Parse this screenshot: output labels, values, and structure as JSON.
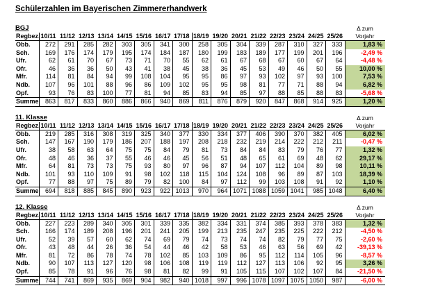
{
  "title": "Schülerzahlen im Bayerischen Zimmererhandwerk",
  "labels": {
    "region_header": "Regbez.",
    "delta_header_line1": "Δ zum",
    "delta_header_line2": "Vorjahr",
    "sum_label": "Summe"
  },
  "colors": {
    "positive_bg": "#c4d79b",
    "negative_text": "#ff0000"
  },
  "years": [
    "10/11",
    "11/12",
    "12/13",
    "13/14",
    "14/15",
    "15/16",
    "16/17",
    "17/18",
    "18/19",
    "19/20",
    "20/21",
    "21/22",
    "22/23",
    "23/24",
    "24/25",
    "25/26"
  ],
  "tables": [
    {
      "name": "BGJ",
      "rows": [
        {
          "label": "Obb.",
          "values": [
            272,
            291,
            285,
            282,
            303,
            305,
            341,
            300,
            258,
            305,
            304,
            339,
            287,
            310,
            327,
            333
          ],
          "delta": {
            "text": "1,83 %",
            "positive": true
          }
        },
        {
          "label": "Sch.",
          "values": [
            169,
            176,
            174,
            179,
            195,
            174,
            184,
            187,
            180,
            199,
            183,
            189,
            177,
            199,
            201,
            196
          ],
          "delta": {
            "text": "-2,49 %",
            "positive": false
          }
        },
        {
          "label": "Ufr.",
          "values": [
            62,
            61,
            70,
            67,
            73,
            71,
            70,
            55,
            62,
            61,
            67,
            68,
            67,
            60,
            67,
            64
          ],
          "delta": {
            "text": "-4,48 %",
            "positive": false
          }
        },
        {
          "label": "Ofr.",
          "values": [
            46,
            36,
            36,
            50,
            43,
            41,
            38,
            45,
            38,
            36,
            45,
            53,
            49,
            46,
            50,
            55
          ],
          "delta": {
            "text": "10,00 %",
            "positive": true
          }
        },
        {
          "label": "Mfr.",
          "values": [
            114,
            81,
            84,
            94,
            99,
            108,
            104,
            95,
            95,
            86,
            97,
            93,
            102,
            97,
            93,
            100
          ],
          "delta": {
            "text": "7,53 %",
            "positive": true
          }
        },
        {
          "label": "Ndb.",
          "values": [
            107,
            96,
            101,
            88,
            96,
            86,
            109,
            102,
            95,
            95,
            98,
            81,
            77,
            71,
            88,
            94
          ],
          "delta": {
            "text": "6,82 %",
            "positive": true
          }
        },
        {
          "label": "Opf.",
          "values": [
            93,
            76,
            83,
            100,
            77,
            81,
            94,
            85,
            83,
            94,
            85,
            97,
            88,
            85,
            88,
            83
          ],
          "delta": {
            "text": "-5,68 %",
            "positive": false
          }
        }
      ],
      "summe": {
        "label": "Summe",
        "values": [
          863,
          817,
          833,
          860,
          886,
          866,
          940,
          869,
          811,
          876,
          879,
          920,
          847,
          868,
          914,
          925
        ],
        "delta": {
          "text": "1,20 %",
          "positive": true
        }
      }
    },
    {
      "name": "11. Klasse",
      "rows": [
        {
          "label": "Obb.",
          "values": [
            219,
            285,
            316,
            308,
            319,
            325,
            340,
            377,
            330,
            334,
            377,
            406,
            390,
            370,
            382,
            405
          ],
          "delta": {
            "text": "6,02 %",
            "positive": true
          }
        },
        {
          "label": "Sch.",
          "values": [
            147,
            167,
            190,
            179,
            186,
            207,
            188,
            197,
            208,
            218,
            232,
            219,
            214,
            222,
            212,
            211
          ],
          "delta": {
            "text": "-0,47 %",
            "positive": false
          }
        },
        {
          "label": "Ufr.",
          "values": [
            38,
            58,
            63,
            64,
            75,
            75,
            84,
            79,
            81,
            73,
            84,
            84,
            83,
            79,
            76,
            77
          ],
          "delta": {
            "text": "1,32 %",
            "positive": true
          }
        },
        {
          "label": "Ofr.",
          "values": [
            48,
            46,
            36,
            37,
            55,
            46,
            46,
            45,
            56,
            51,
            48,
            65,
            61,
            69,
            48,
            62
          ],
          "delta": {
            "text": "29,17 %",
            "positive": true
          }
        },
        {
          "label": "Mfr.",
          "values": [
            64,
            81,
            73,
            73,
            75,
            93,
            80,
            97,
            96,
            87,
            94,
            107,
            112,
            104,
            89,
            98
          ],
          "delta": {
            "text": "10,11 %",
            "positive": true
          }
        },
        {
          "label": "Ndb.",
          "values": [
            101,
            93,
            110,
            109,
            91,
            98,
            102,
            118,
            115,
            104,
            124,
            108,
            96,
            89,
            87,
            103
          ],
          "delta": {
            "text": "18,39 %",
            "positive": true
          }
        },
        {
          "label": "Opf.",
          "values": [
            77,
            88,
            97,
            75,
            89,
            79,
            82,
            100,
            84,
            97,
            112,
            99,
            103,
            108,
            91,
            92
          ],
          "delta": {
            "text": "1,10 %",
            "positive": true
          }
        }
      ],
      "summe": {
        "label": "Summe",
        "values": [
          694,
          818,
          885,
          845,
          890,
          923,
          922,
          1013,
          970,
          964,
          1071,
          1088,
          1059,
          1041,
          985,
          1048
        ],
        "delta": {
          "text": "6,40 %",
          "positive": true
        }
      }
    },
    {
      "name": "12. Klasse",
      "rows": [
        {
          "label": "Obb.",
          "values": [
            227,
            223,
            289,
            340,
            305,
            301,
            339,
            335,
            382,
            334,
            331,
            374,
            385,
            393,
            378,
            383
          ],
          "delta": {
            "text": "1,32 %",
            "positive": true
          }
        },
        {
          "label": "Sch.",
          "values": [
            166,
            174,
            189,
            208,
            196,
            201,
            241,
            205,
            199,
            213,
            235,
            247,
            235,
            225,
            222,
            212
          ],
          "delta": {
            "text": "-4,50 %",
            "positive": false
          }
        },
        {
          "label": "Ufr.",
          "values": [
            52,
            39,
            57,
            60,
            62,
            74,
            69,
            79,
            74,
            73,
            74,
            74,
            82,
            79,
            77,
            75
          ],
          "delta": {
            "text": "-2,60 %",
            "positive": false
          }
        },
        {
          "label": "Ofr.",
          "values": [
            43,
            48,
            44,
            26,
            36,
            54,
            44,
            46,
            42,
            58,
            53,
            46,
            63,
            56,
            69,
            42
          ],
          "delta": {
            "text": "-39,13 %",
            "positive": false
          }
        },
        {
          "label": "Mfr.",
          "values": [
            81,
            72,
            86,
            78,
            74,
            78,
            102,
            85,
            103,
            109,
            86,
            95,
            112,
            114,
            105,
            96
          ],
          "delta": {
            "text": "-8,57 %",
            "positive": false
          }
        },
        {
          "label": "Ndb.",
          "values": [
            90,
            107,
            113,
            127,
            120,
            98,
            106,
            108,
            119,
            119,
            112,
            127,
            113,
            106,
            92,
            95
          ],
          "delta": {
            "text": "3,26 %",
            "positive": true
          }
        },
        {
          "label": "Opf.",
          "values": [
            85,
            78,
            91,
            96,
            76,
            98,
            81,
            82,
            99,
            91,
            105,
            115,
            107,
            102,
            107,
            84
          ],
          "delta": {
            "text": "-21,50 %",
            "positive": false
          }
        }
      ],
      "summe": {
        "label": "Summe",
        "values": [
          744,
          741,
          869,
          935,
          869,
          904,
          982,
          940,
          1018,
          997,
          996,
          1078,
          1097,
          1075,
          1050,
          987
        ],
        "delta": {
          "text": "-6,00 %",
          "positive": false
        }
      }
    }
  ]
}
